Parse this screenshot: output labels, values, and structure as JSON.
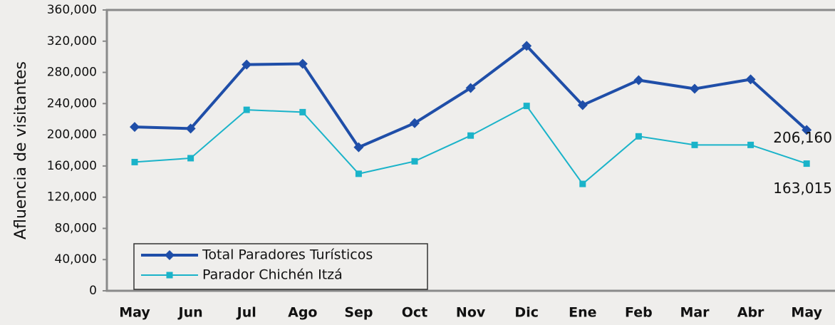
{
  "chart_data": {
    "type": "line",
    "y_label": "Afluencia de visitantes",
    "categories": [
      "May",
      "Jun",
      "Jul",
      "Ago",
      "Sep",
      "Oct",
      "Nov",
      "Dic",
      "Ene",
      "Feb",
      "Mar",
      "Abr",
      "May"
    ],
    "series": [
      {
        "name": "Total Paradores Turísticos",
        "color": "#1f4ea8",
        "marker": "diamond",
        "values": [
          210000,
          208000,
          290000,
          291000,
          184000,
          215000,
          260000,
          314000,
          238000,
          270000,
          259000,
          271000,
          206160
        ],
        "value_labels": [
          null,
          null,
          null,
          null,
          null,
          null,
          null,
          null,
          null,
          null,
          null,
          null,
          "206,160"
        ]
      },
      {
        "name": "Parador Chichén Itzá",
        "color": "#1ab3c9",
        "marker": "square",
        "values": [
          165000,
          170000,
          232000,
          229000,
          150000,
          166000,
          199000,
          237000,
          137000,
          198000,
          187000,
          187000,
          163015
        ],
        "value_labels": [
          null,
          null,
          null,
          null,
          null,
          null,
          null,
          null,
          null,
          null,
          null,
          null,
          "163,015"
        ]
      }
    ],
    "ylim": [
      0,
      360000
    ],
    "yticks": [
      {
        "value": 0,
        "label": "0"
      },
      {
        "value": 40000,
        "label": "40,000"
      },
      {
        "value": 80000,
        "label": "80,000"
      },
      {
        "value": 120000,
        "label": "120,000"
      },
      {
        "value": 160000,
        "label": "160,000"
      },
      {
        "value": 200000,
        "label": "200,000"
      },
      {
        "value": 240000,
        "label": "240,000"
      },
      {
        "value": 280000,
        "label": "280,000"
      },
      {
        "value": 320000,
        "label": "320,000"
      },
      {
        "value": 360000,
        "label": "360,000"
      }
    ],
    "legend": "lower left"
  }
}
